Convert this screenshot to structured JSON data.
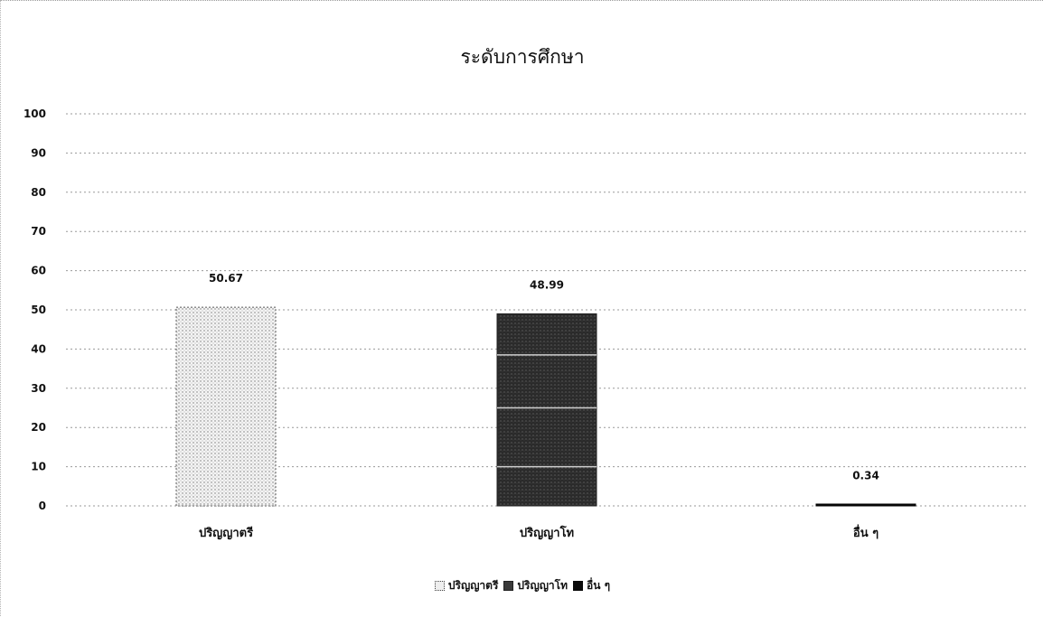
{
  "chart_data": {
    "type": "bar",
    "title": "ระดับการศึกษา",
    "categories": [
      "ปริญญาตรี",
      "ปริญญาโท",
      "อื่น ๆ"
    ],
    "values": [
      50.67,
      48.99,
      0.34
    ],
    "value_labels": [
      "50.67",
      "48.99",
      "0.34"
    ],
    "ylim": [
      0,
      100
    ],
    "yticks": [
      0,
      10,
      20,
      30,
      40,
      50,
      60,
      70,
      80,
      90,
      100
    ],
    "xlabel": "",
    "ylabel": "",
    "grid": true,
    "legend_position": "bottom",
    "legend": [
      "ปริญญาตรี",
      "ปริญญาโท",
      "อื่น ๆ"
    ],
    "colors": [
      "#e6e6e6",
      "#2e2e2e",
      "#0a0a0a"
    ]
  }
}
